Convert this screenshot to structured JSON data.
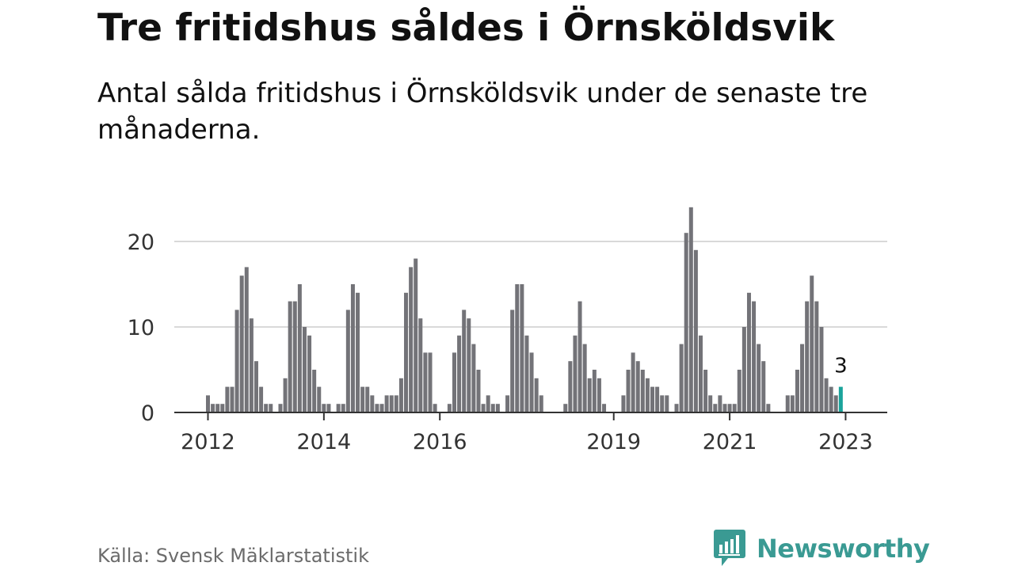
{
  "title": "Tre fritidshus såldes i Örnsköldsvik",
  "subtitle": "Antal sålda fritidshus i Örnsköldsvik under de senaste tre månaderna.",
  "source": "Källa: Svensk Mäklarstatistik",
  "brand": {
    "name": "Newsworthy",
    "color": "#3a9a93",
    "icon": "bar-chart-speech-bubble-icon"
  },
  "colors": {
    "bar": "#737378",
    "highlight": "#1aa39b",
    "grid": "#d9d9d9",
    "axis": "#333333"
  },
  "chart_data": {
    "type": "bar",
    "start_month": "2012-01",
    "x_ticks": [
      "2012",
      "2014",
      "2016",
      "2019",
      "2021",
      "2023"
    ],
    "y_ticks": [
      0,
      10,
      20
    ],
    "ylim": [
      0,
      24
    ],
    "grid": true,
    "values": [
      2,
      1,
      1,
      1,
      3,
      3,
      12,
      16,
      17,
      11,
      6,
      3,
      1,
      1,
      0,
      1,
      4,
      13,
      13,
      15,
      10,
      9,
      5,
      3,
      1,
      1,
      0,
      1,
      1,
      12,
      15,
      14,
      3,
      3,
      2,
      1,
      1,
      2,
      2,
      2,
      4,
      14,
      17,
      18,
      11,
      7,
      7,
      1,
      0,
      0,
      1,
      7,
      9,
      12,
      11,
      8,
      5,
      1,
      2,
      1,
      1,
      0,
      2,
      12,
      15,
      15,
      9,
      7,
      4,
      2,
      0,
      0,
      0,
      0,
      1,
      6,
      9,
      13,
      8,
      4,
      5,
      4,
      1,
      0,
      0,
      0,
      2,
      5,
      7,
      6,
      5,
      4,
      3,
      3,
      2,
      2,
      0,
      1,
      8,
      21,
      24,
      19,
      9,
      5,
      2,
      1,
      2,
      1,
      1,
      1,
      5,
      10,
      14,
      13,
      8,
      6,
      1,
      0,
      0,
      0,
      2,
      2,
      5,
      8,
      13,
      16,
      13,
      10,
      4,
      3,
      2,
      3
    ],
    "highlight": {
      "label": "3",
      "value": 3
    }
  }
}
